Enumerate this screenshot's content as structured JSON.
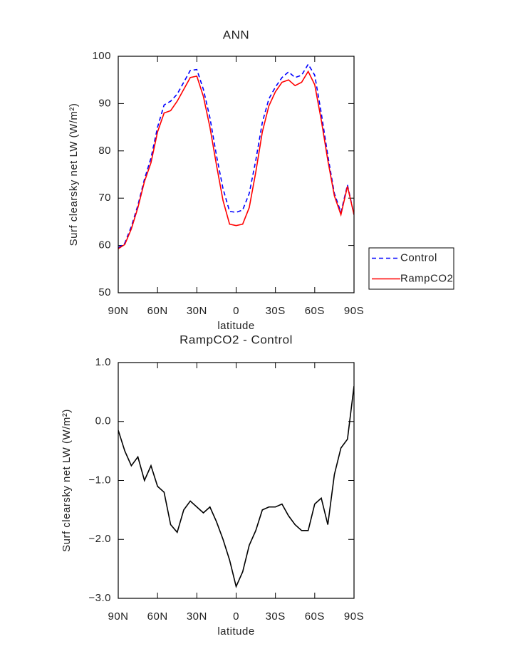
{
  "chart_data": [
    {
      "type": "line",
      "title": "ANN",
      "x_label": "latitude",
      "y_label": "Surf clearsky net LW (W/m²)",
      "x": [
        90,
        85,
        80,
        75,
        70,
        65,
        60,
        55,
        50,
        45,
        40,
        35,
        30,
        25,
        20,
        15,
        10,
        5,
        0,
        -5,
        -10,
        -15,
        -20,
        -25,
        -30,
        -35,
        -40,
        -45,
        -50,
        -55,
        -60,
        -65,
        -70,
        -75,
        -80,
        -85,
        -90
      ],
      "series": [
        {
          "name": "Control",
          "color": "#0000ff",
          "line_style": "dashed",
          "values": [
            59.5,
            60.5,
            64,
            68.5,
            74,
            78.5,
            85,
            89.7,
            90.5,
            92,
            94.5,
            97,
            97.2,
            93,
            87,
            79,
            72,
            67.2,
            67,
            67.5,
            71,
            78,
            86,
            91,
            93.5,
            95.5,
            96.7,
            95.5,
            96,
            98.3,
            96,
            88,
            79,
            71,
            67,
            72.8,
            66.5
          ]
        },
        {
          "name": "RampCO2",
          "color": "#ff0000",
          "line_style": "solid",
          "values": [
            59.3,
            60.2,
            63.5,
            68,
            73.5,
            77.5,
            84,
            88,
            88.5,
            90.5,
            93,
            95.5,
            95.8,
            91.5,
            85,
            77,
            69.5,
            64.5,
            64.2,
            64.5,
            68,
            75.5,
            84,
            89.5,
            92.5,
            94.5,
            95,
            93.8,
            94.5,
            96.8,
            94,
            86.5,
            78,
            70.5,
            66.5,
            72.5,
            66.5
          ]
        }
      ],
      "xlim": [
        90,
        -90
      ],
      "xticks": [
        {
          "value": 90,
          "label": "90N"
        },
        {
          "value": 60,
          "label": "60N"
        },
        {
          "value": 30,
          "label": "30N"
        },
        0,
        {
          "value": -30,
          "label": "30S"
        },
        {
          "value": -60,
          "label": "60S"
        },
        {
          "value": -90,
          "label": "90S"
        }
      ],
      "ylim": [
        50,
        100
      ],
      "yticks": [
        50,
        60,
        70,
        80,
        90,
        100
      ],
      "legend": "right"
    },
    {
      "type": "line",
      "title": "RampCO2 - Control",
      "x_label": "latitude",
      "y_label": "Surf clearsky net LW (W/m²)",
      "x": [
        90,
        85,
        80,
        75,
        70,
        65,
        60,
        55,
        50,
        45,
        40,
        35,
        30,
        25,
        20,
        15,
        10,
        5,
        0,
        -5,
        -10,
        -15,
        -20,
        -25,
        -30,
        -35,
        -40,
        -45,
        -50,
        -55,
        -60,
        -65,
        -70,
        -75,
        -80,
        -85,
        -90
      ],
      "values": [
        -0.15,
        -0.5,
        -0.75,
        -0.6,
        -1.0,
        -0.75,
        -1.1,
        -1.2,
        -1.75,
        -1.88,
        -1.5,
        -1.35,
        -1.45,
        -1.55,
        -1.45,
        -1.7,
        -2.0,
        -2.35,
        -2.8,
        -2.55,
        -2.1,
        -1.85,
        -1.5,
        -1.45,
        -1.45,
        -1.4,
        -1.6,
        -1.75,
        -1.85,
        -1.85,
        -1.4,
        -1.3,
        -1.75,
        -0.9,
        -0.45,
        -0.3,
        0.6
      ],
      "color": "#000000",
      "xlim": [
        90,
        -90
      ],
      "xticks": [
        {
          "value": 90,
          "label": "90N"
        },
        {
          "value": 60,
          "label": "60N"
        },
        {
          "value": 30,
          "label": "30N"
        },
        0,
        {
          "value": -30,
          "label": "30S"
        },
        {
          "value": -60,
          "label": "60S"
        },
        {
          "value": -90,
          "label": "90S"
        }
      ],
      "ylim": [
        -3.0,
        1.0
      ],
      "yticks": [
        {
          "value": -3.0,
          "label": "−3.0"
        },
        {
          "value": -2.0,
          "label": "−2.0"
        },
        {
          "value": -1.0,
          "label": "−1.0"
        },
        {
          "value": 0.0,
          "label": "0.0"
        },
        {
          "value": 1.0,
          "label": "1.0"
        }
      ]
    }
  ]
}
